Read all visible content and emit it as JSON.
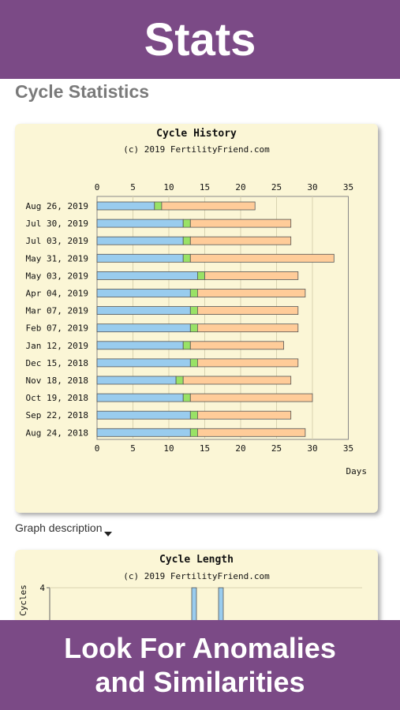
{
  "header": {
    "title": "Stats"
  },
  "section": {
    "title": "Cycle Statistics"
  },
  "graph_description": {
    "label": "Graph description"
  },
  "footer": {
    "line1": "Look For Anomalies",
    "line2": "and Similarities"
  },
  "colors": {
    "banner": "#7b4a86",
    "card_bg": "#fbf6d6",
    "follicular": "#99ccee",
    "ovulation": "#99e266",
    "luteal": "#ffcc99"
  },
  "chart_data": [
    {
      "type": "bar",
      "orientation": "horizontal-stacked",
      "title": "Cycle History",
      "subtitle": "(c) 2019 FertilityFriend.com",
      "xlabel": "Days",
      "xlim": [
        0,
        35
      ],
      "xticks": [
        0,
        5,
        10,
        15,
        20,
        25,
        30,
        35
      ],
      "grid": true,
      "categories": [
        "Aug 26, 2019",
        "Jul 30, 2019",
        "Jul 03, 2019",
        "May 31, 2019",
        "May 03, 2019",
        "Apr 04, 2019",
        "Mar 07, 2019",
        "Feb 07, 2019",
        "Jan 12, 2019",
        "Dec 15, 2018",
        "Nov 18, 2018",
        "Oct 19, 2018",
        "Sep 22, 2018",
        "Aug 24, 2018"
      ],
      "series": [
        {
          "values": [
            8,
            12,
            12,
            12,
            14,
            13,
            13,
            13,
            12,
            13,
            11,
            12,
            13,
            13
          ]
        },
        {
          "values": [
            1,
            1,
            1,
            1,
            1,
            1,
            1,
            1,
            1,
            1,
            1,
            1,
            1,
            1
          ]
        },
        {
          "values": [
            13,
            14,
            14,
            20,
            13,
            15,
            14,
            14,
            13,
            14,
            15,
            17,
            13,
            15
          ]
        }
      ]
    },
    {
      "type": "bar",
      "title": "Cycle Length",
      "subtitle": "(c) 2019 FertilityFriend.com",
      "ylabel": "Cycles",
      "yticks": [
        4
      ],
      "visible_bars_partial": true
    }
  ]
}
